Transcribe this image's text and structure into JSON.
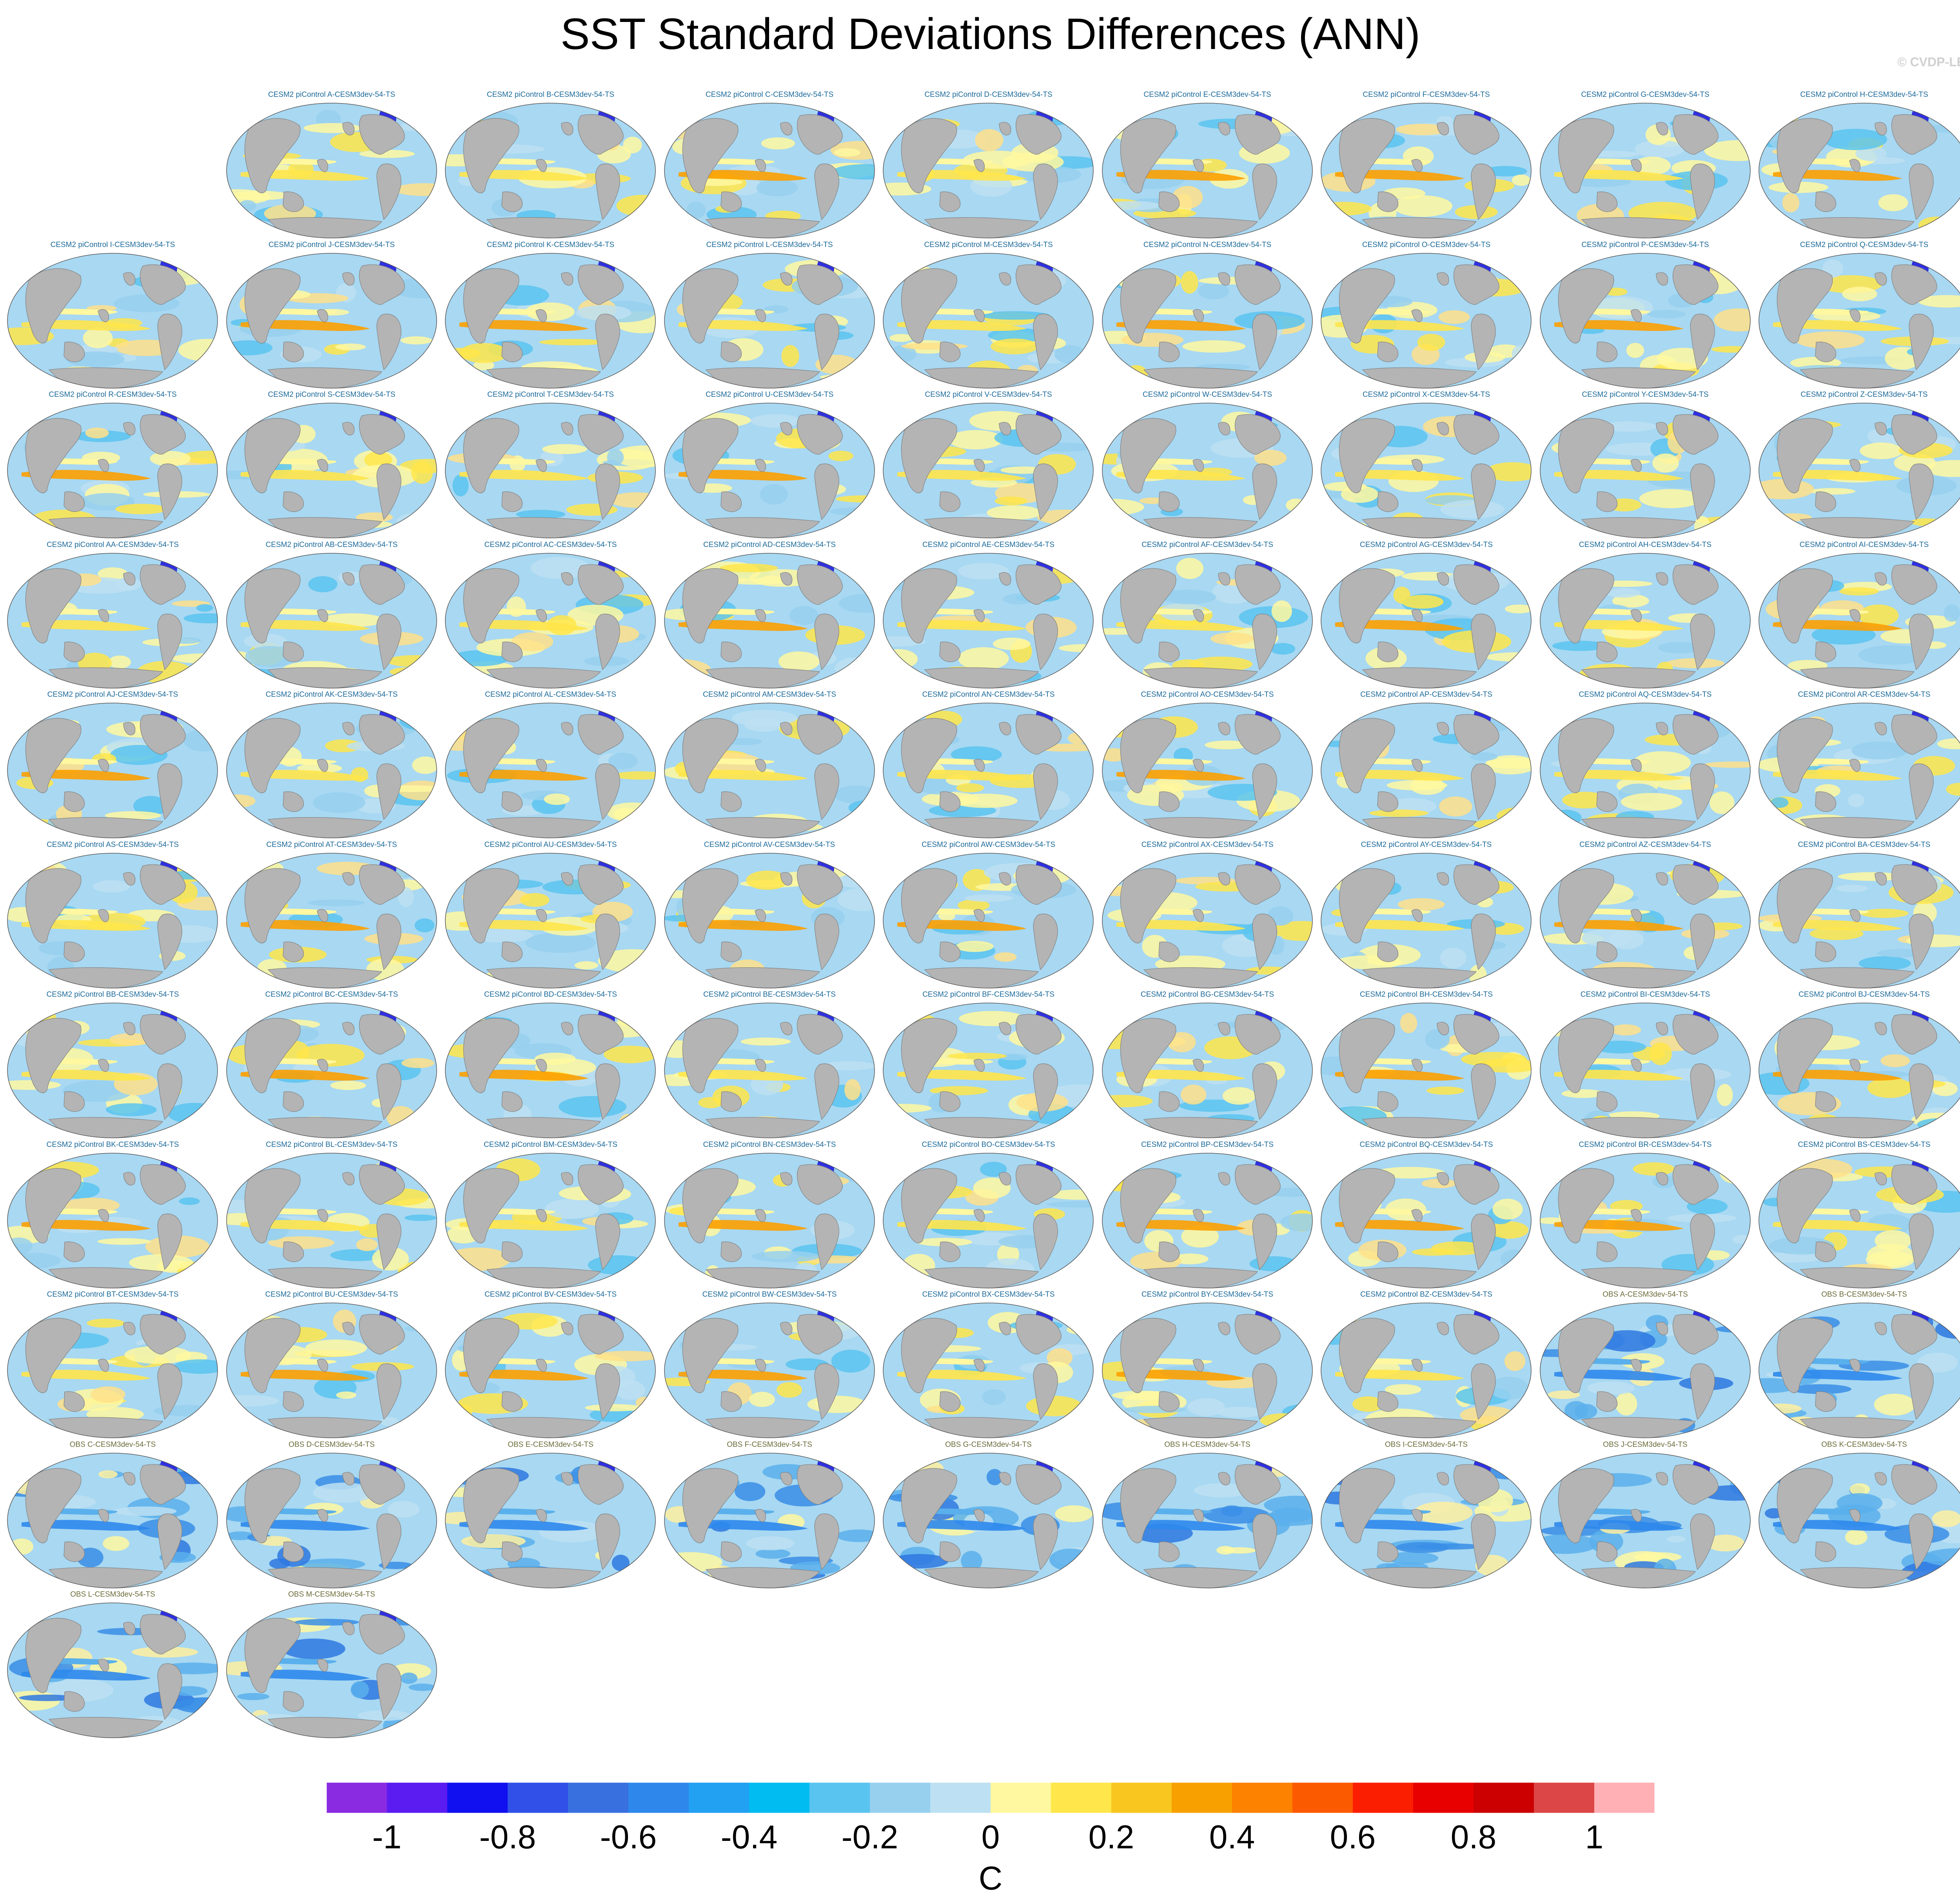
{
  "title": "SST Standard Deviations Differences (ANN)",
  "watermark": "© CVDP-LE",
  "panels": [
    "CESM2 piControl A-CESM3dev-54-TS",
    "CESM2 piControl B-CESM3dev-54-TS",
    "CESM2 piControl C-CESM3dev-54-TS",
    "CESM2 piControl D-CESM3dev-54-TS",
    "CESM2 piControl E-CESM3dev-54-TS",
    "CESM2 piControl F-CESM3dev-54-TS",
    "CESM2 piControl G-CESM3dev-54-TS",
    "CESM2 piControl H-CESM3dev-54-TS",
    "CESM2 piControl I-CESM3dev-54-TS",
    "CESM2 piControl J-CESM3dev-54-TS",
    "CESM2 piControl K-CESM3dev-54-TS",
    "CESM2 piControl L-CESM3dev-54-TS",
    "CESM2 piControl M-CESM3dev-54-TS",
    "CESM2 piControl N-CESM3dev-54-TS",
    "CESM2 piControl O-CESM3dev-54-TS",
    "CESM2 piControl P-CESM3dev-54-TS",
    "CESM2 piControl Q-CESM3dev-54-TS",
    "CESM2 piControl R-CESM3dev-54-TS",
    "CESM2 piControl S-CESM3dev-54-TS",
    "CESM2 piControl T-CESM3dev-54-TS",
    "CESM2 piControl U-CESM3dev-54-TS",
    "CESM2 piControl V-CESM3dev-54-TS",
    "CESM2 piControl W-CESM3dev-54-TS",
    "CESM2 piControl X-CESM3dev-54-TS",
    "CESM2 piControl Y-CESM3dev-54-TS",
    "CESM2 piControl Z-CESM3dev-54-TS",
    "CESM2 piControl AA-CESM3dev-54-TS",
    "CESM2 piControl AB-CESM3dev-54-TS",
    "CESM2 piControl AC-CESM3dev-54-TS",
    "CESM2 piControl AD-CESM3dev-54-TS",
    "CESM2 piControl AE-CESM3dev-54-TS",
    "CESM2 piControl AF-CESM3dev-54-TS",
    "CESM2 piControl AG-CESM3dev-54-TS",
    "CESM2 piControl AH-CESM3dev-54-TS",
    "CESM2 piControl AI-CESM3dev-54-TS",
    "CESM2 piControl AJ-CESM3dev-54-TS",
    "CESM2 piControl AK-CESM3dev-54-TS",
    "CESM2 piControl AL-CESM3dev-54-TS",
    "CESM2 piControl AM-CESM3dev-54-TS",
    "CESM2 piControl AN-CESM3dev-54-TS",
    "CESM2 piControl AO-CESM3dev-54-TS",
    "CESM2 piControl AP-CESM3dev-54-TS",
    "CESM2 piControl AQ-CESM3dev-54-TS",
    "CESM2 piControl AR-CESM3dev-54-TS",
    "CESM2 piControl AS-CESM3dev-54-TS",
    "CESM2 piControl AT-CESM3dev-54-TS",
    "CESM2 piControl AU-CESM3dev-54-TS",
    "CESM2 piControl AV-CESM3dev-54-TS",
    "CESM2 piControl AW-CESM3dev-54-TS",
    "CESM2 piControl AX-CESM3dev-54-TS",
    "CESM2 piControl AY-CESM3dev-54-TS",
    "CESM2 piControl AZ-CESM3dev-54-TS",
    "CESM2 piControl BA-CESM3dev-54-TS",
    "CESM2 piControl BB-CESM3dev-54-TS",
    "CESM2 piControl BC-CESM3dev-54-TS",
    "CESM2 piControl BD-CESM3dev-54-TS",
    "CESM2 piControl BE-CESM3dev-54-TS",
    "CESM2 piControl BF-CESM3dev-54-TS",
    "CESM2 piControl BG-CESM3dev-54-TS",
    "CESM2 piControl BH-CESM3dev-54-TS",
    "CESM2 piControl BI-CESM3dev-54-TS",
    "CESM2 piControl BJ-CESM3dev-54-TS",
    "CESM2 piControl BK-CESM3dev-54-TS",
    "CESM2 piControl BL-CESM3dev-54-TS",
    "CESM2 piControl BM-CESM3dev-54-TS",
    "CESM2 piControl BN-CESM3dev-54-TS",
    "CESM2 piControl BO-CESM3dev-54-TS",
    "CESM2 piControl BP-CESM3dev-54-TS",
    "CESM2 piControl BQ-CESM3dev-54-TS",
    "CESM2 piControl BR-CESM3dev-54-TS",
    "CESM2 piControl BS-CESM3dev-54-TS",
    "CESM2 piControl BT-CESM3dev-54-TS",
    "CESM2 piControl BU-CESM3dev-54-TS",
    "CESM2 piControl BV-CESM3dev-54-TS",
    "CESM2 piControl BW-CESM3dev-54-TS",
    "CESM2 piControl BX-CESM3dev-54-TS",
    "CESM2 piControl BY-CESM3dev-54-TS",
    "CESM2 piControl BZ-CESM3dev-54-TS",
    "OBS A-CESM3dev-54-TS",
    "OBS B-CESM3dev-54-TS",
    "OBS C-CESM3dev-54-TS",
    "OBS D-CESM3dev-54-TS",
    "OBS E-CESM3dev-54-TS",
    "OBS F-CESM3dev-54-TS",
    "OBS G-CESM3dev-54-TS",
    "OBS H-CESM3dev-54-TS",
    "OBS I-CESM3dev-54-TS",
    "OBS J-CESM3dev-54-TS",
    "OBS K-CESM3dev-54-TS",
    "OBS L-CESM3dev-54-TS",
    "OBS M-CESM3dev-54-TS"
  ],
  "colorbar": {
    "colors": [
      "#8a2be2",
      "#5a1cf0",
      "#1010f0",
      "#3050e8",
      "#3870e0",
      "#2e88ec",
      "#22a0f2",
      "#00bcf0",
      "#5ac4f0",
      "#96d0ee",
      "#bde1f2",
      "#fff8a0",
      "#ffe64a",
      "#f8c61e",
      "#f8a000",
      "#fc8200",
      "#fc5a00",
      "#fc1e00",
      "#e80000",
      "#cc0000",
      "#dc4646",
      "#ffb0b4"
    ],
    "tick_labels": [
      "-1",
      "-0.8",
      "-0.6",
      "-0.4",
      "-0.2",
      "0",
      "0.2",
      "0.4",
      "0.6",
      "0.8",
      "1"
    ],
    "unit": "C"
  }
}
